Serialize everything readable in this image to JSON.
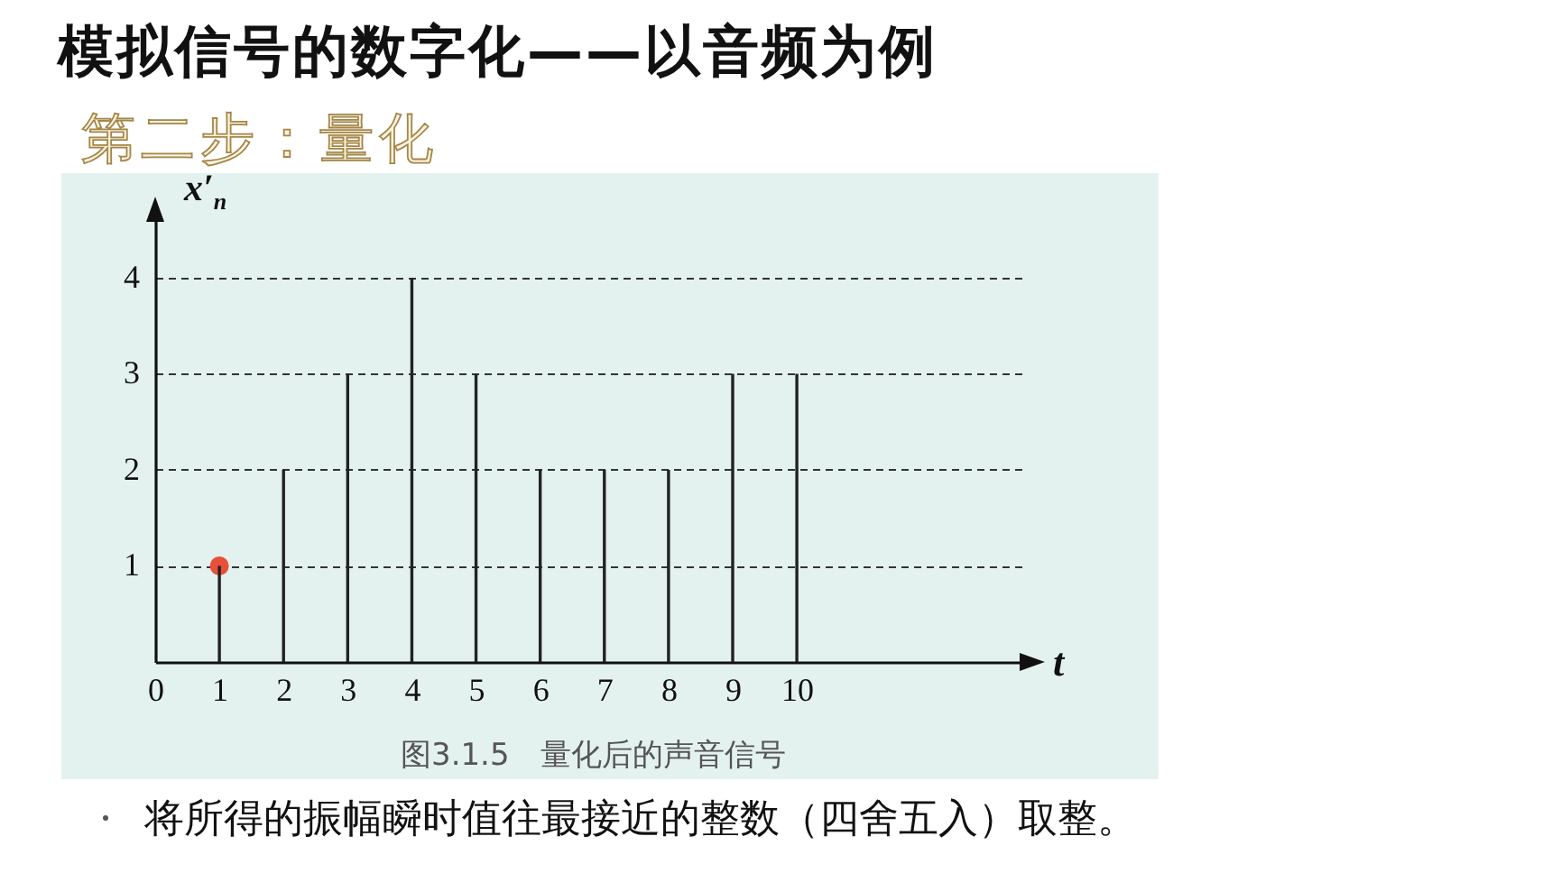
{
  "chart_data": {
    "type": "bar",
    "title": "模拟信号的数字化——以音频为例",
    "subtitle": "第二步：量化",
    "xlabel": "t",
    "ylabel": "x′$_{n}$",
    "x": [
      1,
      2,
      3,
      4,
      5,
      6,
      7,
      8,
      9,
      10
    ],
    "series": [
      {
        "type": "scatter",
        "color": "#e8503a",
        "x": [
          1
        ],
        "values": [
          1
        ]
      },
      {
        "color": "#222222",
        "values": [
          1,
          2,
          3,
          4,
          3,
          2,
          2,
          2,
          3,
          3
        ]
      }
    ],
    "marker": "circle",
    "xlim": [
      0,
      13.5
    ],
    "xticks": [
      0,
      1,
      2,
      3,
      4,
      5,
      6,
      7,
      8,
      9,
      10
    ],
    "ylim": [
      0,
      4.6
    ],
    "yticks": [
      1,
      2,
      3,
      4
    ],
    "grid": "y",
    "annotations": [
      "图3.1.5　量化后的声音信号",
      "将所得的振幅瞬时值往最接近的整数（四舍五入）取整。"
    ]
  }
}
